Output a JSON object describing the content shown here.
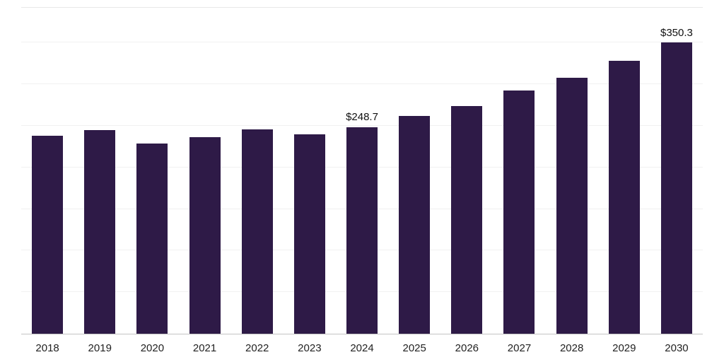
{
  "chart_data": {
    "type": "bar",
    "title": "",
    "xlabel": "",
    "ylabel": "",
    "categories": [
      "2018",
      "2019",
      "2020",
      "2021",
      "2022",
      "2023",
      "2024",
      "2025",
      "2026",
      "2027",
      "2028",
      "2029",
      "2030"
    ],
    "values": [
      238,
      244.5,
      228.5,
      236,
      246,
      240,
      248.7,
      261.5,
      274,
      292.5,
      308,
      328.5,
      350.3
    ],
    "data_labels": [
      "",
      "",
      "",
      "",
      "",
      "",
      "$248.7",
      "",
      "",
      "",
      "",
      "",
      "$350.3"
    ],
    "ylim": [
      0,
      392
    ],
    "gridline_interval": 50,
    "grid": true,
    "legend": false,
    "bar_color": "#2E1A47",
    "axis_line_color": "#c4c4c4",
    "top_line_color": "#e8e8e8",
    "gridline_color": "#f1f1f1",
    "value_label_color": "#111111",
    "tick_label_color": "#222222"
  }
}
